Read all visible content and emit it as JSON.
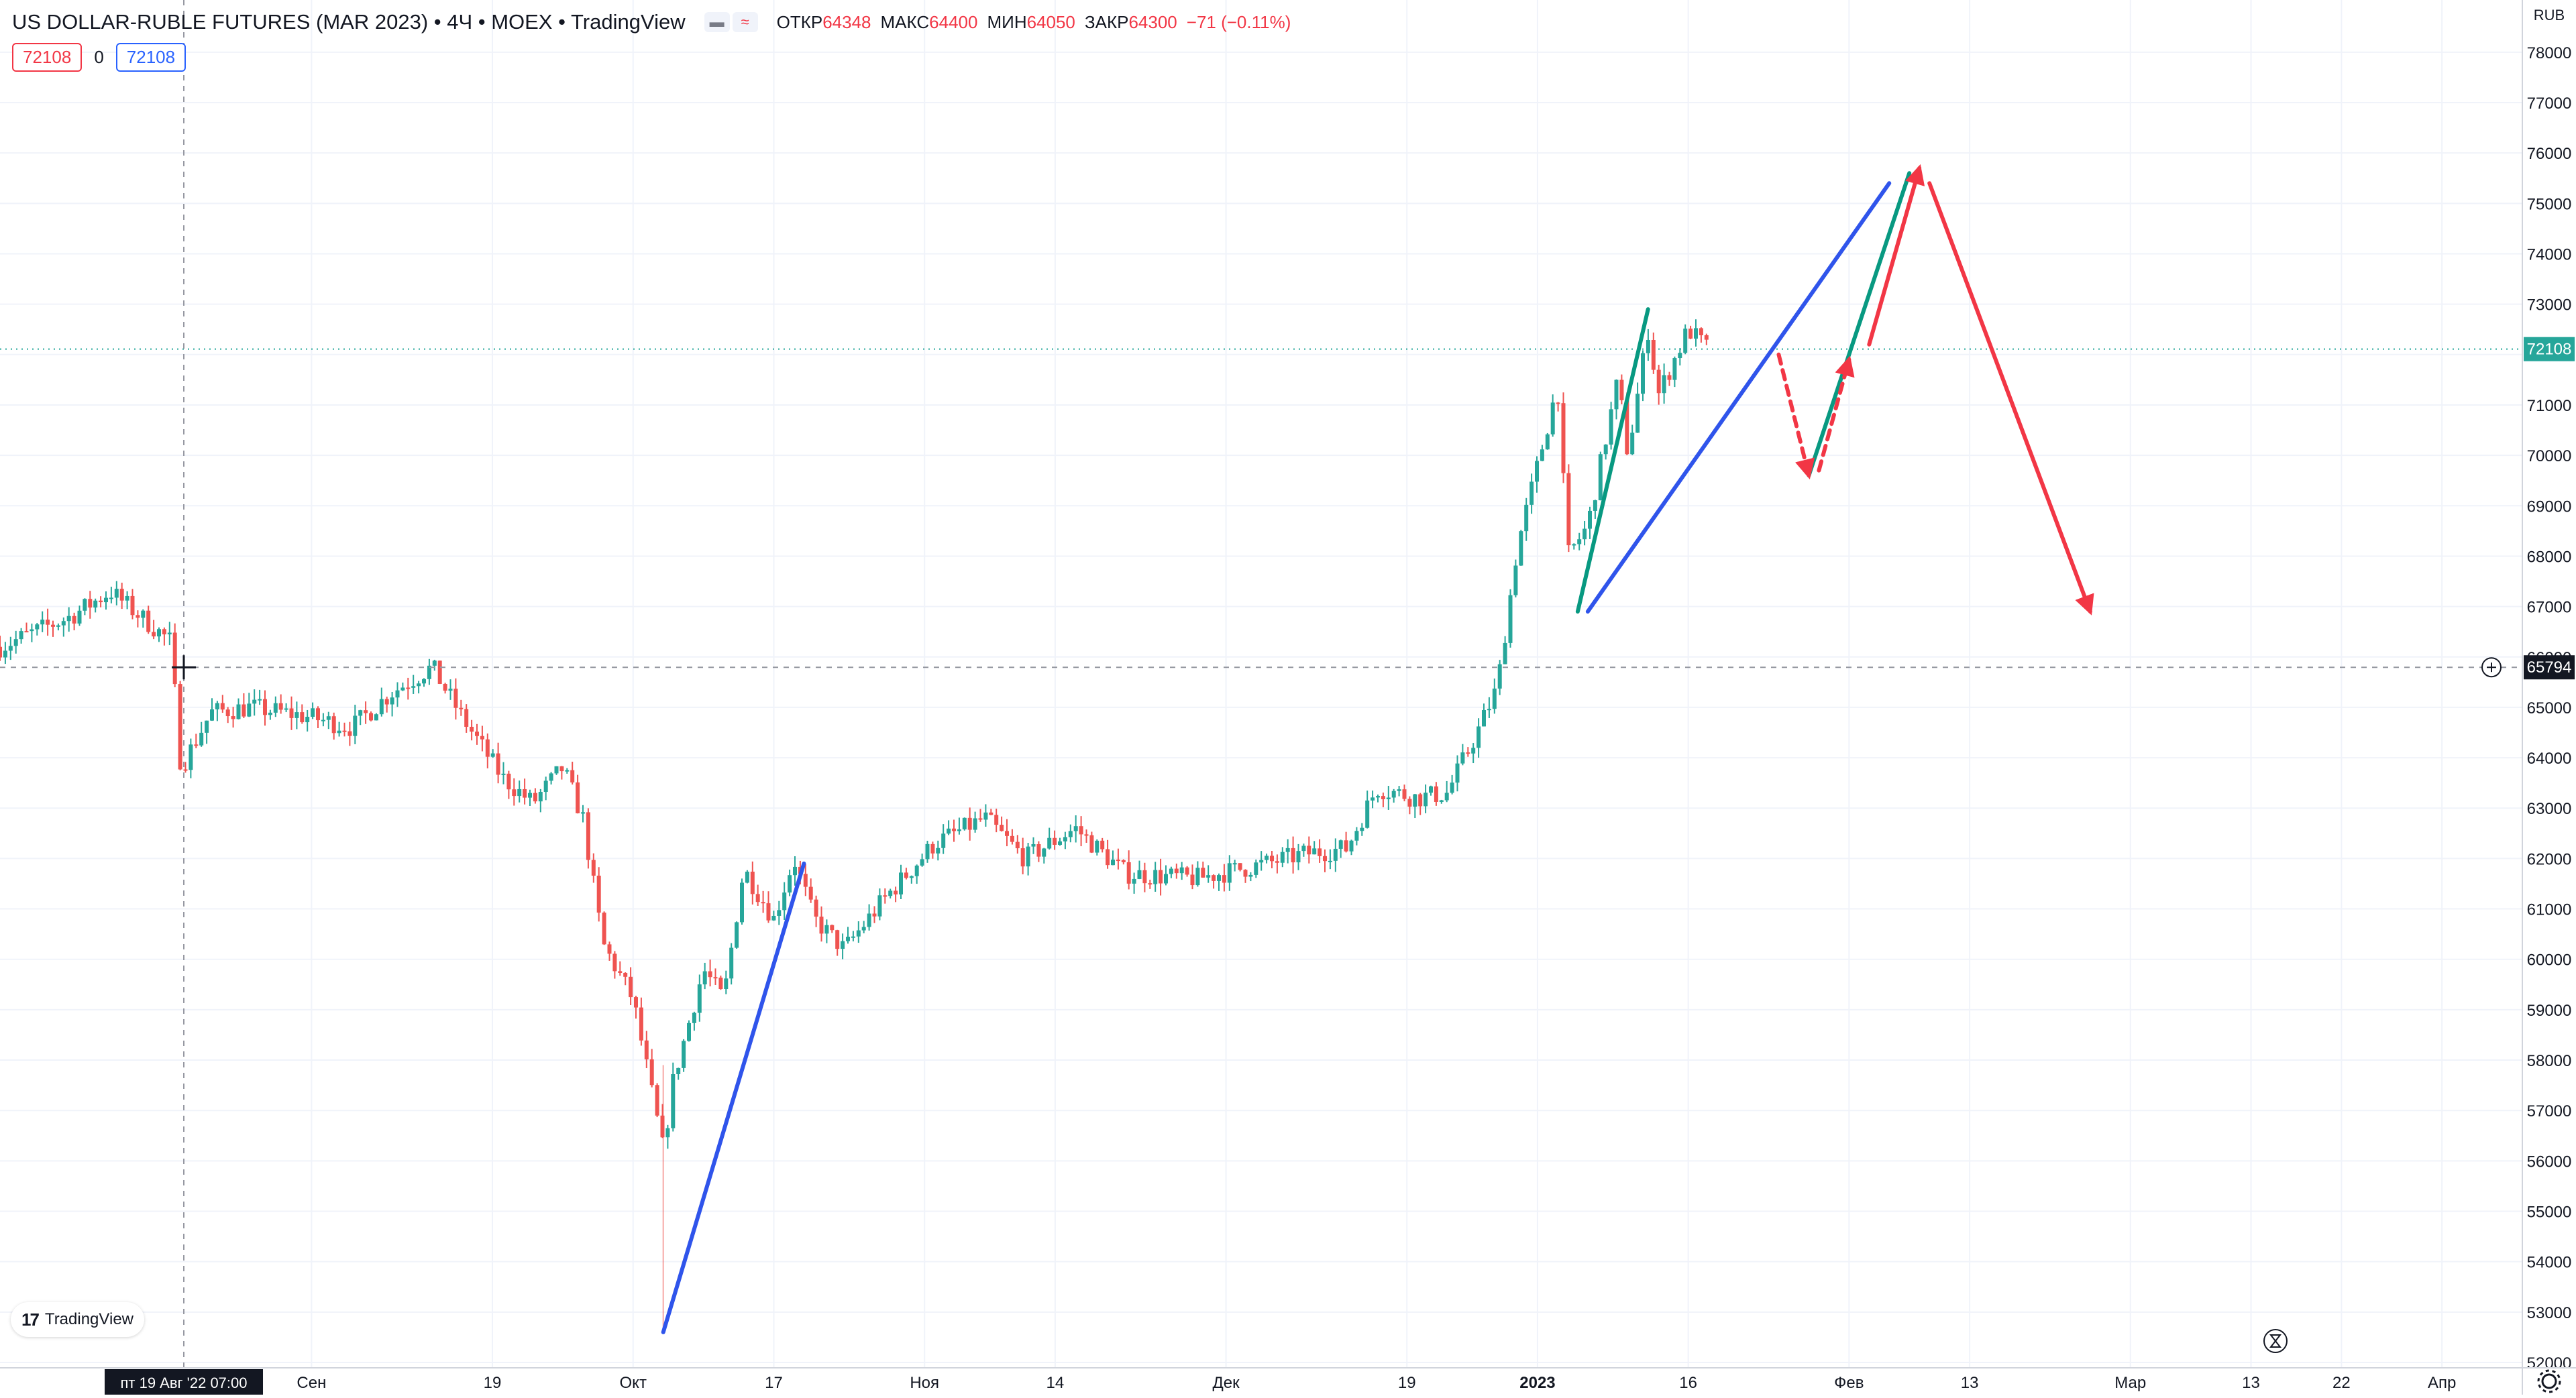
{
  "header": {
    "title": "US DOLLAR-RUBLE FUTURES (MAR 2023) • 4Ч • MOEX • TradingView",
    "ohlc": [
      {
        "label": "ОТКР",
        "value": "64348"
      },
      {
        "label": "МАКС",
        "value": "64400"
      },
      {
        "label": "МИН",
        "value": "64050"
      },
      {
        "label": "ЗАКР",
        "value": "64300"
      }
    ],
    "change": "−71 (−0.11%)"
  },
  "row2": {
    "left_price": "72108",
    "zero": "0",
    "right_price": "72108"
  },
  "price_axis": {
    "currency": "RUB",
    "tick_labels": [
      "78000",
      "77000",
      "76000",
      "75000",
      "74000",
      "73000",
      "72000",
      "71000",
      "70000",
      "69000",
      "68000",
      "67000",
      "66000",
      "65000",
      "64000",
      "63000",
      "62000",
      "61000",
      "60000",
      "59000",
      "58000",
      "57000",
      "56000",
      "55000",
      "54000",
      "53000",
      "52000"
    ],
    "last_price_label": "72108",
    "crosshair_price_label": "65794"
  },
  "time_axis": {
    "crosshair_label": "пт 19 Авг '22   07:00",
    "labels": [
      {
        "t": "Сен",
        "bold": false
      },
      {
        "t": "19",
        "bold": false
      },
      {
        "t": "Окт",
        "bold": false
      },
      {
        "t": "17",
        "bold": false
      },
      {
        "t": "Ноя",
        "bold": false
      },
      {
        "t": "14",
        "bold": false
      },
      {
        "t": "Дек",
        "bold": false
      },
      {
        "t": "19",
        "bold": false
      },
      {
        "t": "2023",
        "bold": true
      },
      {
        "t": "16",
        "bold": false
      },
      {
        "t": "Фев",
        "bold": false
      },
      {
        "t": "13",
        "bold": false
      },
      {
        "t": "Мар",
        "bold": false
      },
      {
        "t": "13",
        "bold": false
      },
      {
        "t": "22",
        "bold": false
      },
      {
        "t": "Апр",
        "bold": false
      }
    ]
  },
  "branding": {
    "logo_text": "TradingView",
    "logo_mark": "17"
  },
  "icons": {
    "settings": "gear-icon",
    "add_alert": "plus-circle-icon",
    "replay": "hourglass-icon",
    "crosshair": "crosshair-icon",
    "visibility": "eye-icon",
    "indicators": "wave-icon"
  },
  "colors": {
    "up": "#26a69a",
    "down": "#ef5350",
    "trend_blue": "#2f54eb",
    "trend_green": "#089981",
    "arrow_red": "#f23645",
    "last_price": "#26a69a",
    "crosshair_label_bg": "#131722"
  },
  "chart_data": {
    "type": "candlestick",
    "title": "US DOLLAR-RUBLE FUTURES (MAR 2023)",
    "timeframe": "4Ч",
    "exchange": "MOEX",
    "ylabel": "RUB",
    "ylim": [
      52000,
      78400
    ],
    "grid": true,
    "last_price": 72108,
    "crosshair": {
      "date": "2022-08-19 07:00",
      "price": 65794
    },
    "price_path": [
      [
        "2022-08-01",
        66200
      ],
      [
        "2022-08-08",
        66800
      ],
      [
        "2022-08-12",
        67300
      ],
      [
        "2022-08-18",
        66300
      ],
      [
        "2022-08-19",
        63800
      ],
      [
        "2022-08-22",
        64900
      ],
      [
        "2022-08-26",
        65000
      ],
      [
        "2022-09-01",
        64800
      ],
      [
        "2022-09-05",
        64600
      ],
      [
        "2022-09-09",
        65300
      ],
      [
        "2022-09-13",
        65800
      ],
      [
        "2022-09-16",
        64800
      ],
      [
        "2022-09-20",
        63600
      ],
      [
        "2022-09-23",
        63100
      ],
      [
        "2022-09-26",
        63800
      ],
      [
        "2022-09-28",
        62800
      ],
      [
        "2022-09-30",
        60300
      ],
      [
        "2022-10-03",
        59200
      ],
      [
        "2022-10-06",
        56200
      ],
      [
        "2022-10-07",
        57600
      ],
      [
        "2022-10-10",
        59800
      ],
      [
        "2022-10-12",
        59200
      ],
      [
        "2022-10-14",
        61800
      ],
      [
        "2022-10-17",
        60800
      ],
      [
        "2022-10-19",
        62000
      ],
      [
        "2022-10-21",
        60800
      ],
      [
        "2022-10-24",
        60200
      ],
      [
        "2022-10-28",
        61200
      ],
      [
        "2022-11-02",
        62300
      ],
      [
        "2022-11-07",
        62800
      ],
      [
        "2022-11-11",
        62000
      ],
      [
        "2022-11-16",
        62600
      ],
      [
        "2022-11-21",
        61700
      ],
      [
        "2022-11-28",
        61600
      ],
      [
        "2022-12-05",
        61900
      ],
      [
        "2022-12-09",
        62100
      ],
      [
        "2022-12-13",
        62200
      ],
      [
        "2022-12-16",
        63400
      ],
      [
        "2022-12-20",
        63200
      ],
      [
        "2022-12-23",
        63300
      ],
      [
        "2022-12-26",
        64500
      ],
      [
        "2022-12-28",
        65400
      ],
      [
        "2022-12-30",
        68200
      ],
      [
        "2023-01-03",
        71400
      ],
      [
        "2023-01-04",
        68000
      ],
      [
        "2023-01-06",
        68600
      ],
      [
        "2023-01-09",
        71500
      ],
      [
        "2023-01-10",
        70000
      ],
      [
        "2023-01-12",
        72500
      ],
      [
        "2023-01-13",
        71200
      ],
      [
        "2023-01-16",
        72500
      ],
      [
        "2023-01-18",
        72100
      ]
    ],
    "annotations": [
      {
        "kind": "trendline",
        "color": "blue",
        "from": [
          "2022-10-06",
          52600
        ],
        "to": [
          "2022-10-20",
          61900
        ]
      },
      {
        "kind": "trendline",
        "color": "blue",
        "from": [
          "2023-01-06",
          66900
        ],
        "to": [
          "2023-02-05",
          75400
        ]
      },
      {
        "kind": "trendline",
        "color": "green",
        "from": [
          "2023-01-05",
          66900
        ],
        "to": [
          "2023-01-12",
          72900
        ]
      },
      {
        "kind": "trendline",
        "color": "green",
        "from": [
          "2023-01-28",
          69600
        ],
        "to": [
          "2023-02-07",
          75600
        ]
      },
      {
        "kind": "dashed-arrow",
        "color": "red",
        "from": [
          "2023-01-25",
          72000
        ],
        "to": [
          "2023-01-28",
          69600
        ]
      },
      {
        "kind": "dashed-arrow",
        "color": "red",
        "from": [
          "2023-01-29",
          69700
        ],
        "to": [
          "2023-02-01",
          71900
        ]
      },
      {
        "kind": "arrow",
        "color": "red",
        "from": [
          "2023-02-03",
          72200
        ],
        "to": [
          "2023-02-08",
          75700
        ]
      },
      {
        "kind": "arrow",
        "color": "red",
        "from": [
          "2023-02-09",
          75400
        ],
        "to": [
          "2023-02-25",
          66900
        ]
      }
    ]
  }
}
